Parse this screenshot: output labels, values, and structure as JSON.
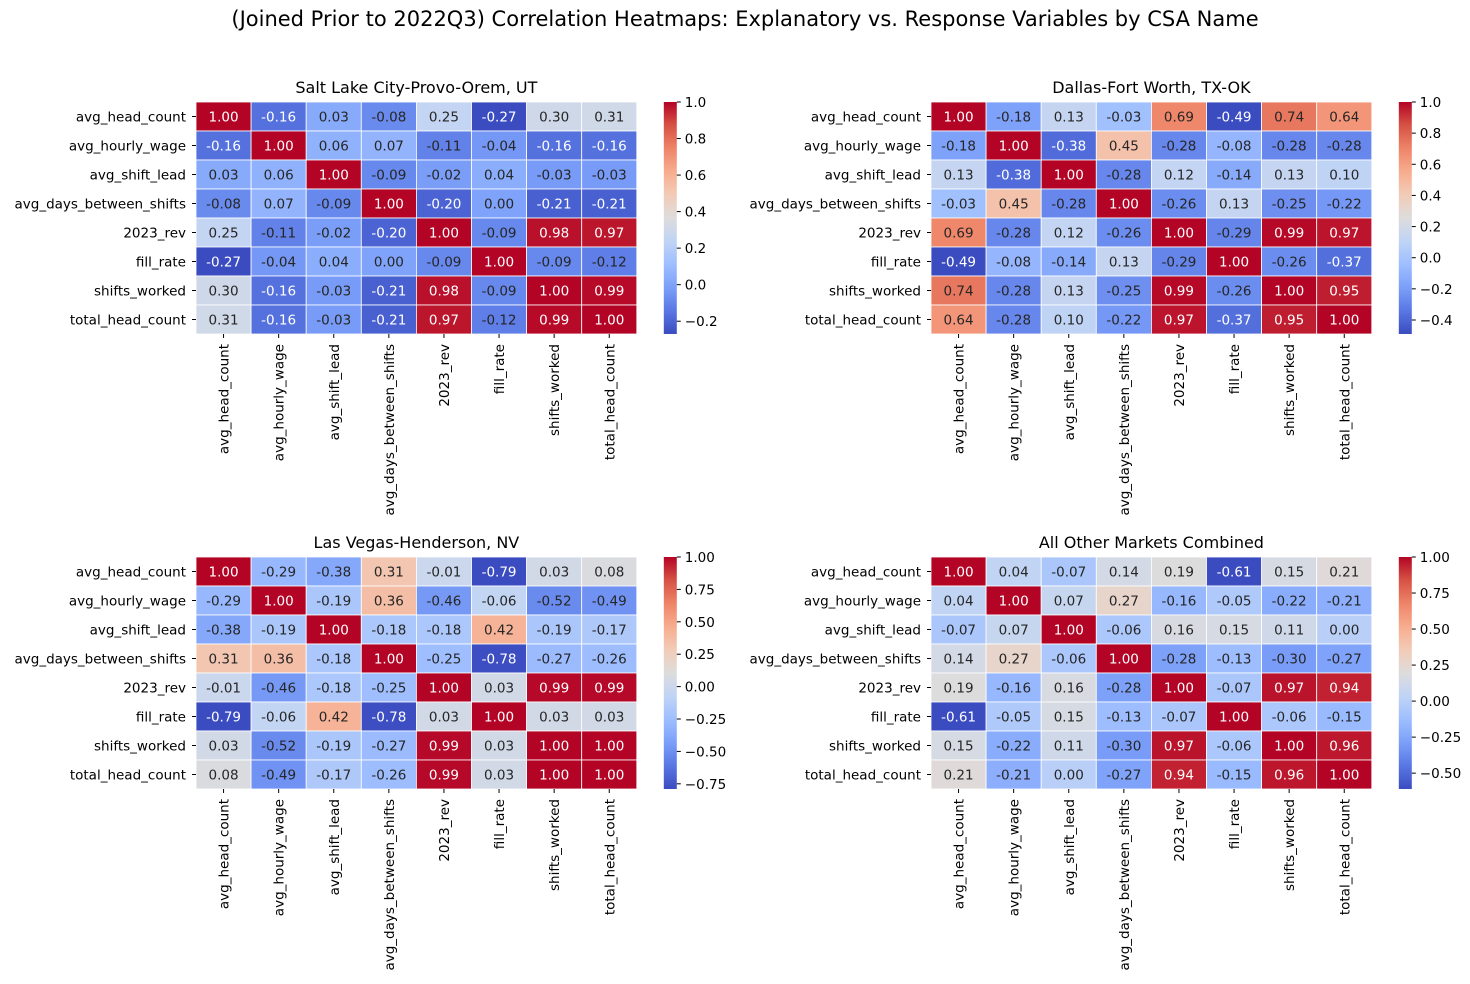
{
  "figure": {
    "suptitle": "(Joined Prior to 2022Q3) Correlation Heatmaps: Explanatory vs. Response Variables by CSA Name"
  },
  "colormap": {
    "name": "coolwarm",
    "stops": [
      "#3b4cc0",
      "#5977e3",
      "#7b9ff9",
      "#9ebeff",
      "#c0d4f5",
      "#dddcdc",
      "#f2cbb7",
      "#f7ac8e",
      "#ee8468",
      "#d65244",
      "#b40426"
    ]
  },
  "chart_data": [
    {
      "type": "heatmap",
      "title": "Salt Lake City-Provo-Orem, UT",
      "variables": [
        "avg_head_count",
        "avg_hourly_wage",
        "avg_shift_lead",
        "avg_days_between_shifts",
        "2023_rev",
        "fill_rate",
        "shifts_worked",
        "total_head_count"
      ],
      "matrix": [
        [
          1.0,
          -0.16,
          0.03,
          -0.08,
          0.25,
          -0.27,
          0.3,
          0.31
        ],
        [
          -0.16,
          1.0,
          0.06,
          0.07,
          -0.11,
          -0.04,
          -0.16,
          -0.16
        ],
        [
          0.03,
          0.06,
          1.0,
          -0.09,
          -0.02,
          0.04,
          -0.03,
          -0.03
        ],
        [
          -0.08,
          0.07,
          -0.09,
          1.0,
          -0.2,
          0.0,
          -0.21,
          -0.21
        ],
        [
          0.25,
          -0.11,
          -0.02,
          -0.2,
          1.0,
          -0.09,
          0.98,
          0.97
        ],
        [
          -0.27,
          -0.04,
          0.04,
          0.0,
          -0.09,
          1.0,
          -0.09,
          -0.12
        ],
        [
          0.3,
          -0.16,
          -0.03,
          -0.21,
          0.98,
          -0.09,
          1.0,
          0.99
        ],
        [
          0.31,
          -0.16,
          -0.03,
          -0.21,
          0.97,
          -0.12,
          0.99,
          1.0
        ]
      ],
      "vmin": -0.27,
      "vmax": 1.0,
      "colorbar_ticks": [
        "1.0",
        "0.8",
        "0.6",
        "0.4",
        "0.2",
        "0.0",
        "−0.2"
      ],
      "colorbar_tick_values": [
        1.0,
        0.8,
        0.6,
        0.4,
        0.2,
        0.0,
        -0.2
      ]
    },
    {
      "type": "heatmap",
      "title": "Dallas-Fort Worth, TX-OK",
      "variables": [
        "avg_head_count",
        "avg_hourly_wage",
        "avg_shift_lead",
        "avg_days_between_shifts",
        "2023_rev",
        "fill_rate",
        "shifts_worked",
        "total_head_count"
      ],
      "matrix": [
        [
          1.0,
          -0.18,
          0.13,
          -0.03,
          0.69,
          -0.49,
          0.74,
          0.64
        ],
        [
          -0.18,
          1.0,
          -0.38,
          0.45,
          -0.28,
          -0.08,
          -0.28,
          -0.28
        ],
        [
          0.13,
          -0.38,
          1.0,
          -0.28,
          0.12,
          -0.14,
          0.13,
          0.1
        ],
        [
          -0.03,
          0.45,
          -0.28,
          1.0,
          -0.26,
          0.13,
          -0.25,
          -0.22
        ],
        [
          0.69,
          -0.28,
          0.12,
          -0.26,
          1.0,
          -0.29,
          0.99,
          0.97
        ],
        [
          -0.49,
          -0.08,
          -0.14,
          0.13,
          -0.29,
          1.0,
          -0.26,
          -0.37
        ],
        [
          0.74,
          -0.28,
          0.13,
          -0.25,
          0.99,
          -0.26,
          1.0,
          0.95
        ],
        [
          0.64,
          -0.28,
          0.1,
          -0.22,
          0.97,
          -0.37,
          0.95,
          1.0
        ]
      ],
      "vmin": -0.49,
      "vmax": 1.0,
      "colorbar_ticks": [
        "1.0",
        "0.8",
        "0.6",
        "0.4",
        "0.2",
        "0.0",
        "−0.2",
        "−0.4"
      ],
      "colorbar_tick_values": [
        1.0,
        0.8,
        0.6,
        0.4,
        0.2,
        0.0,
        -0.2,
        -0.4
      ]
    },
    {
      "type": "heatmap",
      "title": "Las Vegas-Henderson, NV",
      "variables": [
        "avg_head_count",
        "avg_hourly_wage",
        "avg_shift_lead",
        "avg_days_between_shifts",
        "2023_rev",
        "fill_rate",
        "shifts_worked",
        "total_head_count"
      ],
      "matrix": [
        [
          1.0,
          -0.29,
          -0.38,
          0.31,
          -0.01,
          -0.79,
          0.03,
          0.08
        ],
        [
          -0.29,
          1.0,
          -0.19,
          0.36,
          -0.46,
          -0.06,
          -0.52,
          -0.49
        ],
        [
          -0.38,
          -0.19,
          1.0,
          -0.18,
          -0.18,
          0.42,
          -0.19,
          -0.17
        ],
        [
          0.31,
          0.36,
          -0.18,
          1.0,
          -0.25,
          -0.78,
          -0.27,
          -0.26
        ],
        [
          -0.01,
          -0.46,
          -0.18,
          -0.25,
          1.0,
          0.03,
          0.99,
          0.99
        ],
        [
          -0.79,
          -0.06,
          0.42,
          -0.78,
          0.03,
          1.0,
          0.03,
          0.03
        ],
        [
          0.03,
          -0.52,
          -0.19,
          -0.27,
          0.99,
          0.03,
          1.0,
          1.0
        ],
        [
          0.08,
          -0.49,
          -0.17,
          -0.26,
          0.99,
          0.03,
          1.0,
          1.0
        ]
      ],
      "vmin": -0.79,
      "vmax": 1.0,
      "colorbar_ticks": [
        "1.00",
        "0.75",
        "0.50",
        "0.25",
        "0.00",
        "−0.25",
        "−0.50",
        "−0.75"
      ],
      "colorbar_tick_values": [
        1.0,
        0.75,
        0.5,
        0.25,
        0.0,
        -0.25,
        -0.5,
        -0.75
      ]
    },
    {
      "type": "heatmap",
      "title": "All Other Markets Combined",
      "variables": [
        "avg_head_count",
        "avg_hourly_wage",
        "avg_shift_lead",
        "avg_days_between_shifts",
        "2023_rev",
        "fill_rate",
        "shifts_worked",
        "total_head_count"
      ],
      "matrix": [
        [
          1.0,
          0.04,
          -0.07,
          0.14,
          0.19,
          -0.61,
          0.15,
          0.21
        ],
        [
          0.04,
          1.0,
          0.07,
          0.27,
          -0.16,
          -0.05,
          -0.22,
          -0.21
        ],
        [
          -0.07,
          0.07,
          1.0,
          -0.06,
          0.16,
          0.15,
          0.11,
          0.0
        ],
        [
          0.14,
          0.27,
          -0.06,
          1.0,
          -0.28,
          -0.13,
          -0.3,
          -0.27
        ],
        [
          0.19,
          -0.16,
          0.16,
          -0.28,
          1.0,
          -0.07,
          0.97,
          0.94
        ],
        [
          -0.61,
          -0.05,
          0.15,
          -0.13,
          -0.07,
          1.0,
          -0.06,
          -0.15
        ],
        [
          0.15,
          -0.22,
          0.11,
          -0.3,
          0.97,
          -0.06,
          1.0,
          0.96
        ],
        [
          0.21,
          -0.21,
          0.0,
          -0.27,
          0.94,
          -0.15,
          0.96,
          1.0
        ]
      ],
      "vmin": -0.61,
      "vmax": 1.0,
      "colorbar_ticks": [
        "1.00",
        "0.75",
        "0.50",
        "0.25",
        "0.00",
        "−0.25",
        "−0.50"
      ],
      "colorbar_tick_values": [
        1.0,
        0.75,
        0.5,
        0.25,
        0.0,
        -0.25,
        -0.5
      ]
    }
  ]
}
